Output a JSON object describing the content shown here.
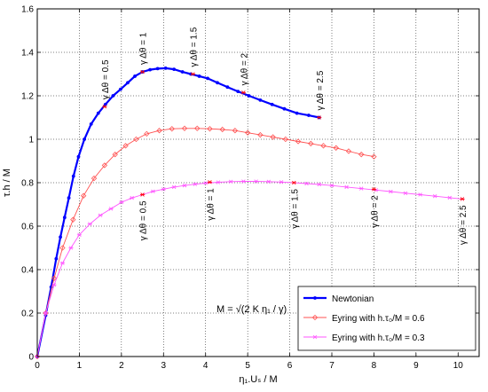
{
  "chart_data": {
    "type": "line",
    "title": "",
    "xlabel": "η₁.Uₛ / M",
    "ylabel": "τ.h / M",
    "xlim": [
      0,
      10.5
    ],
    "ylim": [
      0,
      1.6
    ],
    "xticks": [
      "0",
      "1",
      "2",
      "3",
      "4",
      "5",
      "6",
      "7",
      "8",
      "9",
      "10"
    ],
    "yticks": [
      "0",
      "0.2",
      "0.4",
      "0.6",
      "0.8",
      "1",
      "1.2",
      "1.4",
      "1.6"
    ],
    "grid": true,
    "legend_position": "lower-right",
    "formula_annotation": "M = √(2 K η₁ / γ)",
    "series": [
      {
        "name": "Newtonian",
        "color": "#0000ff",
        "marker": "dot",
        "x": [
          0,
          0.2,
          0.33,
          0.45,
          0.55,
          0.65,
          0.75,
          0.86,
          0.98,
          1.12,
          1.28,
          1.45,
          1.62,
          1.8,
          1.98,
          2.15,
          2.32,
          2.5,
          2.68,
          2.86,
          3.05,
          3.25,
          3.45,
          3.65,
          3.85,
          4.05,
          4.28,
          4.52,
          4.77,
          5.03,
          5.3,
          5.58,
          5.87,
          6.17,
          6.45,
          6.7
        ],
        "y": [
          0,
          0.19,
          0.32,
          0.45,
          0.55,
          0.64,
          0.73,
          0.83,
          0.92,
          1.0,
          1.07,
          1.12,
          1.16,
          1.2,
          1.23,
          1.26,
          1.29,
          1.31,
          1.32,
          1.325,
          1.327,
          1.322,
          1.31,
          1.3,
          1.29,
          1.28,
          1.26,
          1.24,
          1.22,
          1.2,
          1.18,
          1.16,
          1.14,
          1.12,
          1.11,
          1.1
        ]
      },
      {
        "name": "Eyring with h.τ₀/M = 0.6",
        "color": "#ff5050",
        "marker": "diamond",
        "x": [
          0,
          0.2,
          0.4,
          0.6,
          0.85,
          1.1,
          1.35,
          1.6,
          1.85,
          2.1,
          2.35,
          2.6,
          2.9,
          3.2,
          3.5,
          3.8,
          4.1,
          4.4,
          4.7,
          5.0,
          5.3,
          5.6,
          5.9,
          6.2,
          6.5,
          6.8,
          7.1,
          7.4,
          7.7,
          8.0
        ],
        "y": [
          0,
          0.2,
          0.36,
          0.5,
          0.63,
          0.74,
          0.82,
          0.88,
          0.93,
          0.97,
          1.0,
          1.025,
          1.04,
          1.048,
          1.05,
          1.05,
          1.048,
          1.045,
          1.04,
          1.03,
          1.02,
          1.01,
          1.0,
          0.99,
          0.98,
          0.97,
          0.96,
          0.945,
          0.93,
          0.92
        ]
      },
      {
        "name": "Eyring with h.τ₀/M = 0.3",
        "color": "#ff55ff",
        "marker": "star",
        "x": [
          0,
          0.2,
          0.4,
          0.6,
          0.8,
          1.0,
          1.25,
          1.5,
          1.75,
          2.0,
          2.25,
          2.5,
          2.75,
          3.0,
          3.25,
          3.5,
          3.75,
          4.0,
          4.3,
          4.6,
          4.9,
          5.2,
          5.5,
          5.8,
          6.1,
          6.4,
          6.7,
          7.0,
          7.35,
          7.7,
          8.05,
          8.4,
          8.75,
          9.1,
          9.45,
          9.8,
          10.1
        ],
        "y": [
          0,
          0.2,
          0.33,
          0.43,
          0.5,
          0.56,
          0.61,
          0.65,
          0.68,
          0.71,
          0.73,
          0.745,
          0.76,
          0.77,
          0.78,
          0.787,
          0.793,
          0.798,
          0.802,
          0.805,
          0.806,
          0.806,
          0.805,
          0.803,
          0.8,
          0.796,
          0.792,
          0.787,
          0.78,
          0.773,
          0.766,
          0.759,
          0.752,
          0.745,
          0.738,
          0.731,
          0.725
        ]
      }
    ],
    "highlight_points": [
      {
        "series": 0,
        "x": 1.6,
        "y": 1.15,
        "label": "γ Δθ = 0.5"
      },
      {
        "series": 0,
        "x": 2.5,
        "y": 1.31,
        "label": "γ Δθ = 1"
      },
      {
        "series": 0,
        "x": 3.7,
        "y": 1.3,
        "label": "γ Δθ = 1.5"
      },
      {
        "series": 0,
        "x": 4.9,
        "y": 1.215,
        "label": "γ Δθ = 2"
      },
      {
        "series": 0,
        "x": 6.7,
        "y": 1.1,
        "label": "γ Δθ = 2.5"
      },
      {
        "series": 2,
        "x": 2.5,
        "y": 0.745,
        "label": "γ Δθ = 0.5"
      },
      {
        "series": 2,
        "x": 4.1,
        "y": 0.803,
        "label": "γ Δθ = 1"
      },
      {
        "series": 2,
        "x": 6.1,
        "y": 0.8,
        "label": "γ Δθ = 1.5"
      },
      {
        "series": 2,
        "x": 8.0,
        "y": 0.77,
        "label": "γ Δθ = 2"
      },
      {
        "series": 2,
        "x": 10.1,
        "y": 0.725,
        "label": "γ Δθ = 2.5"
      }
    ]
  }
}
